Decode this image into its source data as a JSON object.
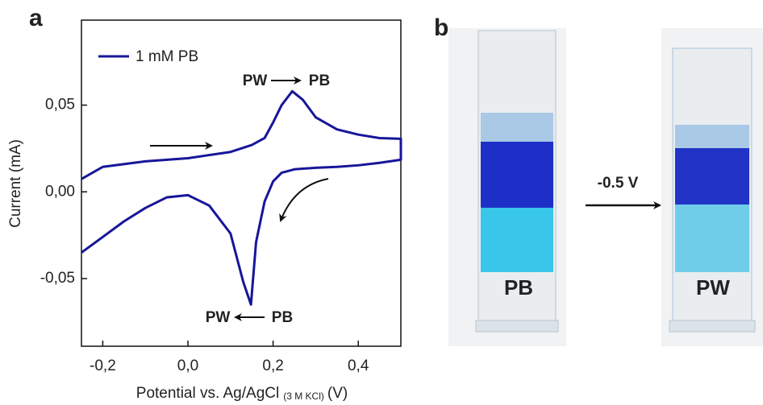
{
  "panel_labels": [
    "a",
    "b"
  ],
  "chart_data": {
    "type": "line",
    "xlabel": {
      "main": "Potential vs. Ag/AgCl",
      "subscript": "(3 M KCl)",
      "unit": "(V)"
    },
    "ylabel": "Current (mA)",
    "xlim": [
      -0.25,
      0.5
    ],
    "xticks": [
      {
        "value": -0.2,
        "label": "-0,2"
      },
      {
        "value": 0,
        "label": "0,0"
      },
      {
        "value": 0.2,
        "label": "0,2"
      },
      {
        "value": 0.4,
        "label": "0,4"
      }
    ],
    "ylim": [
      -0.089,
      0.099
    ],
    "yticks": [
      {
        "value": -0.05,
        "label": "-0,05"
      },
      {
        "value": 0,
        "label": "0,00"
      },
      {
        "value": 0.05,
        "label": "0,05"
      }
    ],
    "legend": "top-left",
    "series": [
      {
        "name": "1 mM PB",
        "color": "#16169a",
        "x": [
          -0.25,
          -0.2,
          -0.1,
          0.0,
          0.1,
          0.15,
          0.18,
          0.2,
          0.22,
          0.245,
          0.27,
          0.3,
          0.35,
          0.4,
          0.45,
          0.5,
          0.5,
          0.45,
          0.4,
          0.35,
          0.3,
          0.25,
          0.22,
          0.2,
          0.18,
          0.16,
          0.148,
          0.13,
          0.1,
          0.05,
          0.0,
          -0.05,
          -0.1,
          -0.15,
          -0.2,
          -0.25
        ],
        "values": [
          0.0074,
          0.0144,
          0.0176,
          0.0194,
          0.023,
          0.027,
          0.031,
          0.04,
          0.05,
          0.058,
          0.053,
          0.043,
          0.036,
          0.033,
          0.031,
          0.0306,
          0.0185,
          0.0167,
          0.0153,
          0.0144,
          0.0139,
          0.013,
          0.011,
          0.006,
          -0.0056,
          -0.029,
          -0.065,
          -0.052,
          -0.024,
          -0.0079,
          -0.0019,
          -0.0032,
          -0.0093,
          -0.017,
          -0.026,
          -0.035
        ]
      }
    ],
    "annotations": [
      {
        "left": "PW",
        "right": "PB"
      },
      {
        "left": "PW",
        "right": "PB"
      }
    ]
  },
  "panel_b": {
    "step": "-0.5 V",
    "samples": [
      "PB",
      "PW"
    ]
  }
}
